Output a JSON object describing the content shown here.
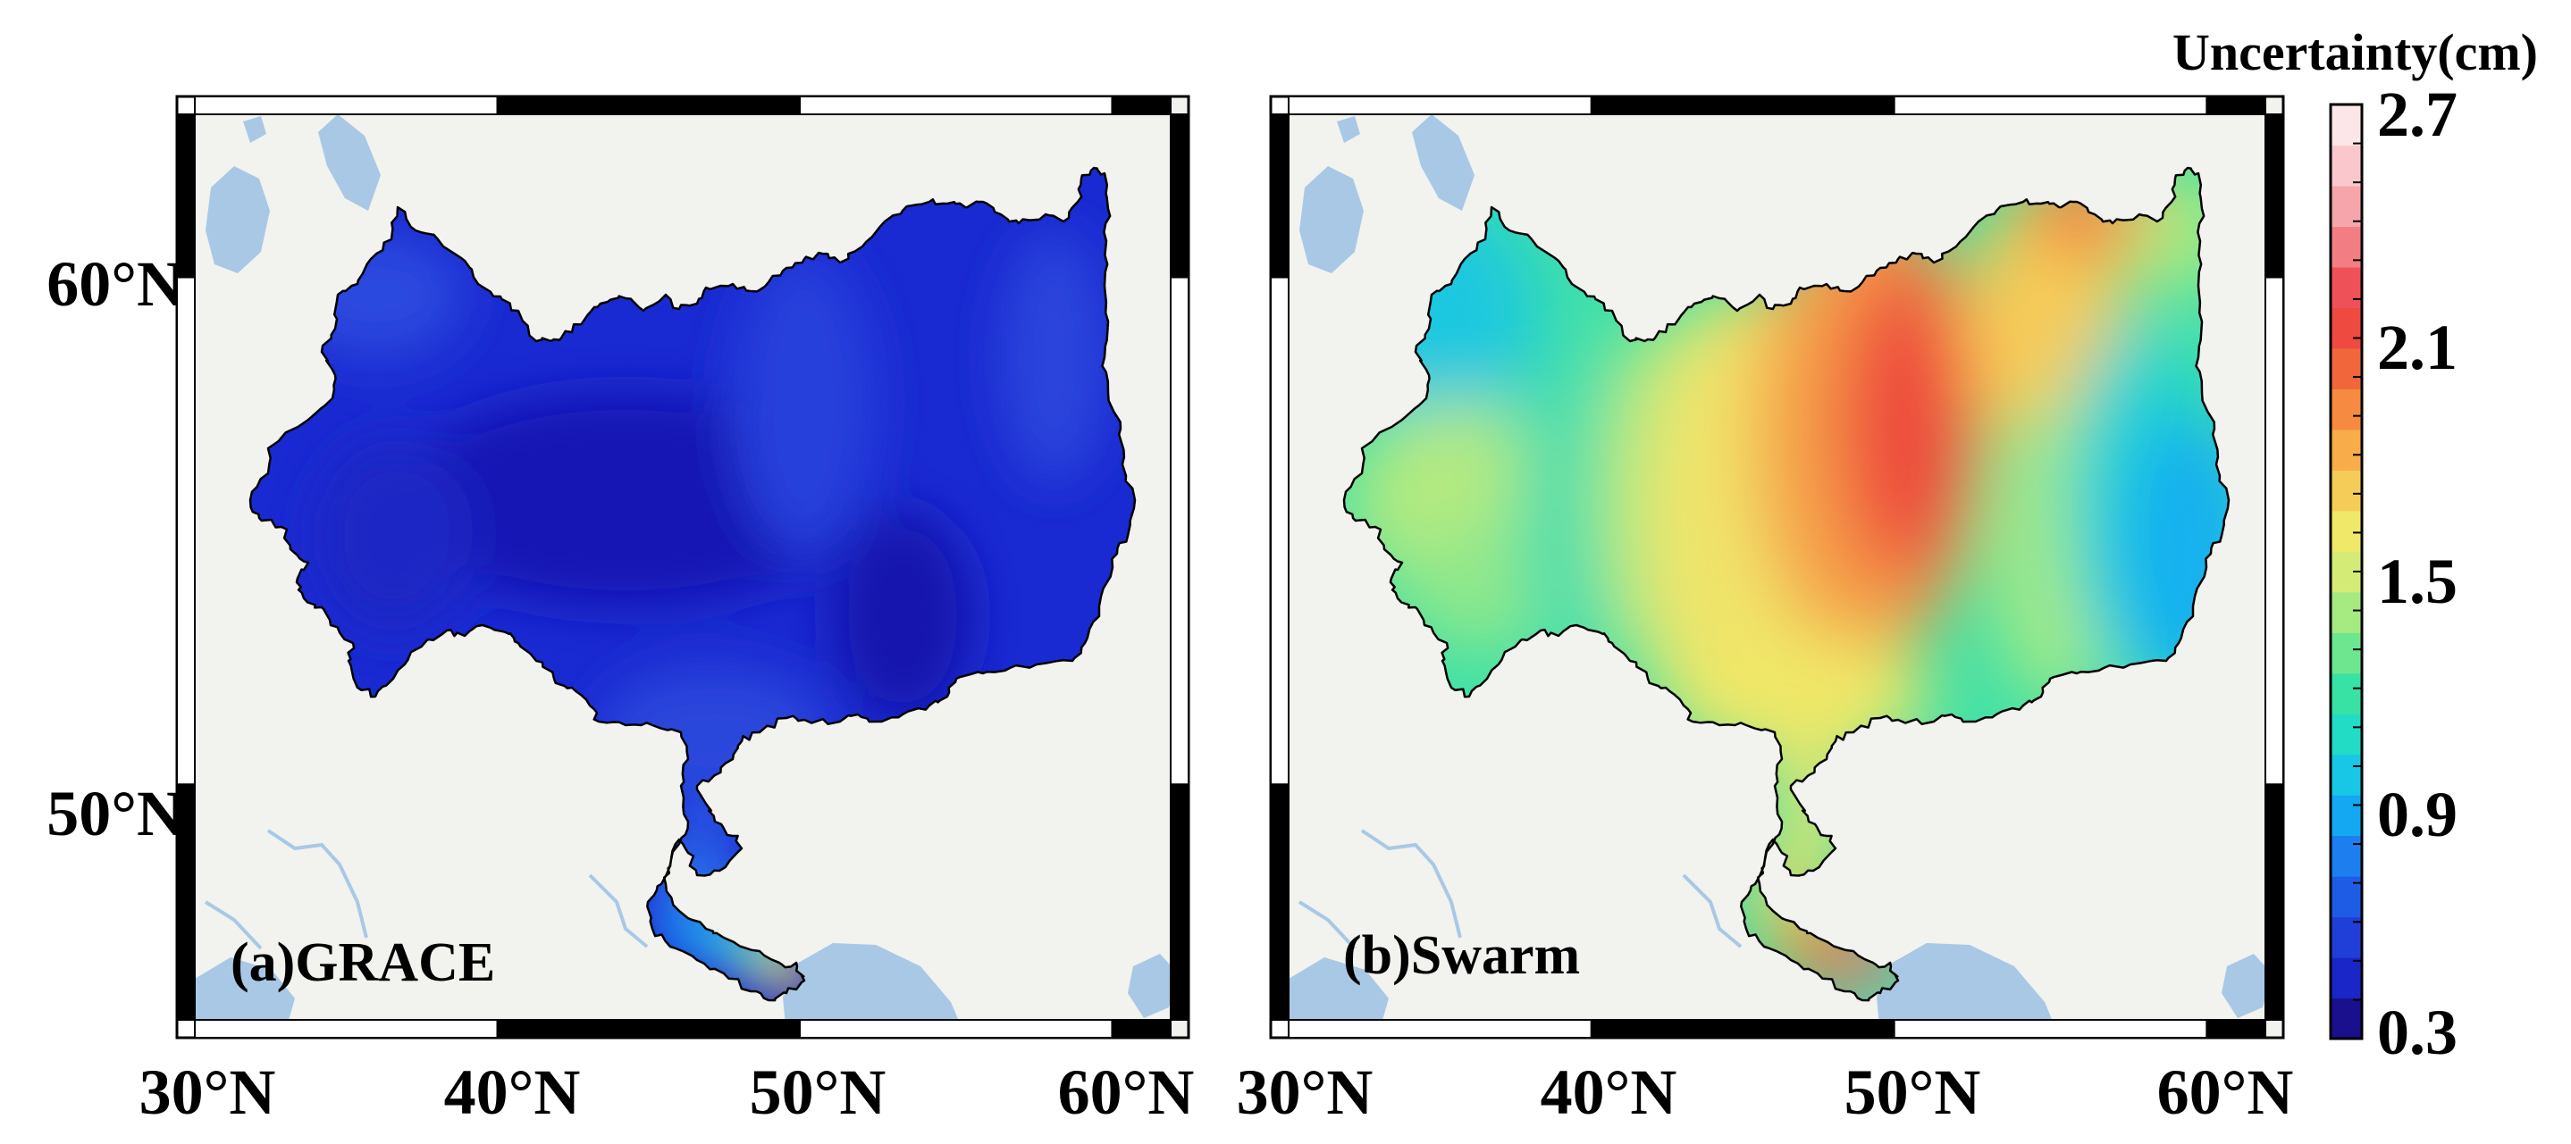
{
  "colorbar": {
    "title": "Uncertainty(cm)",
    "tick_labels": [
      "2.7",
      "2.1",
      "1.5",
      "0.9",
      "0.3"
    ],
    "min": 0.3,
    "max": 2.7,
    "colors": [
      "#1a0f8c",
      "#1a26c8",
      "#1f3fd8",
      "#1e5ce6",
      "#1d7ef0",
      "#14a8f2",
      "#18c6e6",
      "#22dcc6",
      "#38e2a4",
      "#6ee690",
      "#a6ea82",
      "#d4ec76",
      "#f0e868",
      "#f6cc58",
      "#f8ac4a",
      "#f68a40",
      "#f2663c",
      "#ee4a40",
      "#ee5258",
      "#f27e84",
      "#f6a6aa",
      "#fac8cc",
      "#fde6e8"
    ]
  },
  "panels": [
    {
      "label": "(a)GRACE",
      "y_tick_labels": [
        "60°N",
        "50°N"
      ],
      "x_tick_labels": [
        "30°N",
        "40°N",
        "50°N",
        "60°N"
      ]
    },
    {
      "label": "(b)Swarm",
      "x_tick_labels": [
        "30°N",
        "40°N",
        "50°N",
        "60°N"
      ]
    }
  ]
}
